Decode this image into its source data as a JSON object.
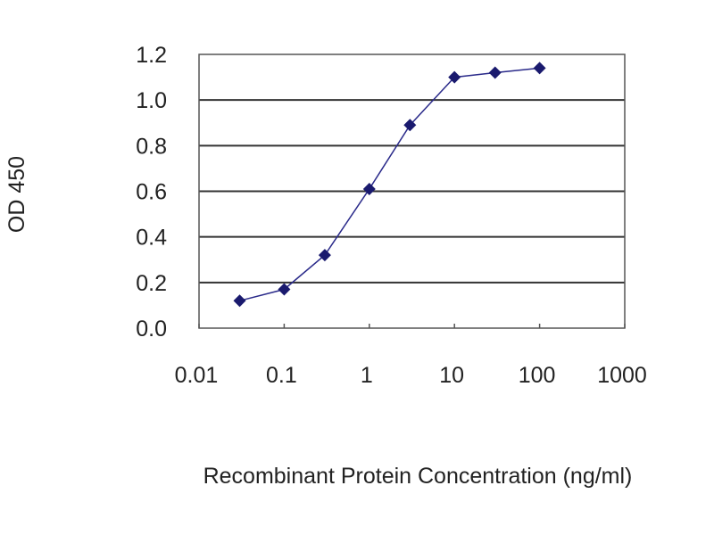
{
  "chart_data": {
    "type": "line",
    "title": "",
    "xlabel": "Recombinant Protein Concentration (ng/ml)",
    "ylabel": "OD 450",
    "x_scale": "log",
    "xlim": [
      0.01,
      1000
    ],
    "ylim": [
      0,
      1.2
    ],
    "x_ticks": [
      "0.01",
      "0.1",
      "1",
      "10",
      "100",
      "1000"
    ],
    "y_ticks": [
      "0.0",
      "0.2",
      "0.4",
      "0.6",
      "0.8",
      "1.0",
      "1.2"
    ],
    "grid": "horizontal",
    "legend": "none",
    "series": [
      {
        "x": [
          0.03,
          0.1,
          0.3,
          1,
          3,
          10,
          30,
          100
        ],
        "y": [
          0.12,
          0.17,
          0.32,
          0.61,
          0.89,
          1.1,
          1.12,
          1.14
        ],
        "color": "#1a1a6e",
        "marker": "diamond"
      }
    ]
  }
}
